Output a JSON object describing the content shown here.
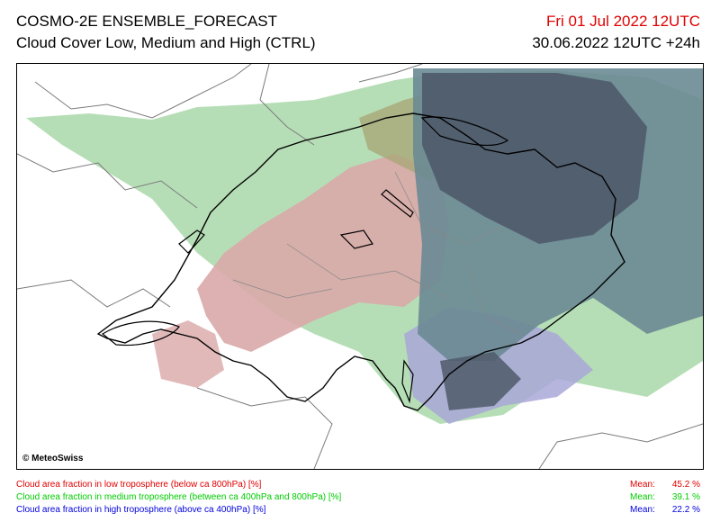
{
  "header": {
    "title": "COSMO-2E ENSEMBLE_FORECAST",
    "subtitle": "Cloud Cover Low, Medium and High (CTRL)",
    "valid_time": "Fri 01 Jul 2022 12UTC",
    "run_time": "30.06.2022 12UTC +24h"
  },
  "map": {
    "copyright": "© MeteoSwiss",
    "colors": {
      "low": "#d9a8a8",
      "medium": "#a9d8a9",
      "high": "#a9a8d8",
      "low_medium": "#a9a878",
      "medium_high": "#6a8a94",
      "all": "#4f5a6a"
    }
  },
  "legend": [
    {
      "label": "Cloud area fraction in low troposphere (below ca 800hPa) [%]",
      "mean_label": "Mean:",
      "mean_value": "45.2 %",
      "color": "#e00000"
    },
    {
      "label": "Cloud area fraction in medium troposphere (between ca 400hPa and 800hPa) [%]",
      "mean_label": "Mean:",
      "mean_value": "39.1 %",
      "color": "#00cc00"
    },
    {
      "label": "Cloud area fraction in high troposphere (above ca 400hPa) [%]",
      "mean_label": "Mean:",
      "mean_value": "22.2 %",
      "color": "#0000dd"
    }
  ]
}
